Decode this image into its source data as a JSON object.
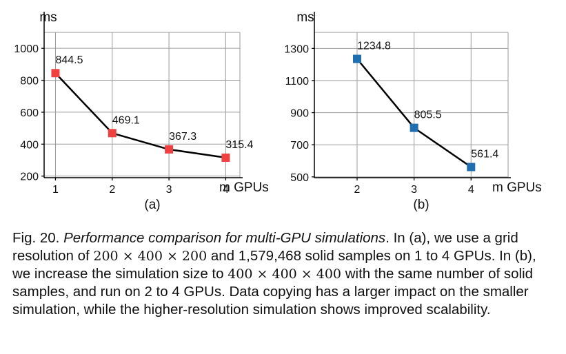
{
  "chart_data": [
    {
      "type": "line",
      "panel_label": "(a)",
      "ylabel": "ms",
      "xlabel": "m GPUs",
      "x": [
        1,
        2,
        3,
        4
      ],
      "y": [
        844.5,
        469.1,
        367.3,
        315.4
      ],
      "data_labels": [
        "844.5",
        "469.1",
        "367.3",
        "315.4"
      ],
      "xticks": [
        "1",
        "2",
        "3",
        "4"
      ],
      "yticks": [
        200,
        400,
        600,
        800,
        1000
      ],
      "ytick_labels": [
        "200",
        "400",
        "600",
        "800",
        "1000"
      ],
      "xlim": [
        0.8,
        4.25
      ],
      "ylim": [
        190,
        1100
      ],
      "grid": true,
      "marker": "square",
      "marker_color": "#f04040",
      "line_color": "#000000"
    },
    {
      "type": "line",
      "panel_label": "(b)",
      "ylabel": "ms",
      "xlabel": "m GPUs",
      "x": [
        2,
        3,
        4
      ],
      "y": [
        1234.8,
        805.5,
        561.4
      ],
      "data_labels": [
        "1234.8",
        "805.5",
        "561.4"
      ],
      "xticks": [
        "2",
        "3",
        "4"
      ],
      "yticks": [
        500,
        700,
        900,
        1100,
        1300
      ],
      "ytick_labels": [
        "500",
        "700",
        "900",
        "1100",
        "1300"
      ],
      "xlim": [
        1.25,
        4.65
      ],
      "ylim": [
        495,
        1400
      ],
      "grid": true,
      "marker": "square",
      "marker_color": "#1f6fb0",
      "line_color": "#000000"
    }
  ],
  "caption": {
    "fig_label": "Fig. 20.",
    "title": "Performance comparison for multi-GPU simulations",
    "s1": ". In (a), we use a grid resolution of ",
    "m1": "200 × 400 × 200",
    "s2": " and 1,579,468 solid samples on 1 to 4 GPUs. In (b), we increase the simulation size to ",
    "m2": "400 × 400 × 400",
    "s3": " with the same number of solid samples, and run on 2 to 4 GPUs. Data copying has a larger impact on the smaller simulation, while the higher-resolution simulation shows improved scalability."
  }
}
